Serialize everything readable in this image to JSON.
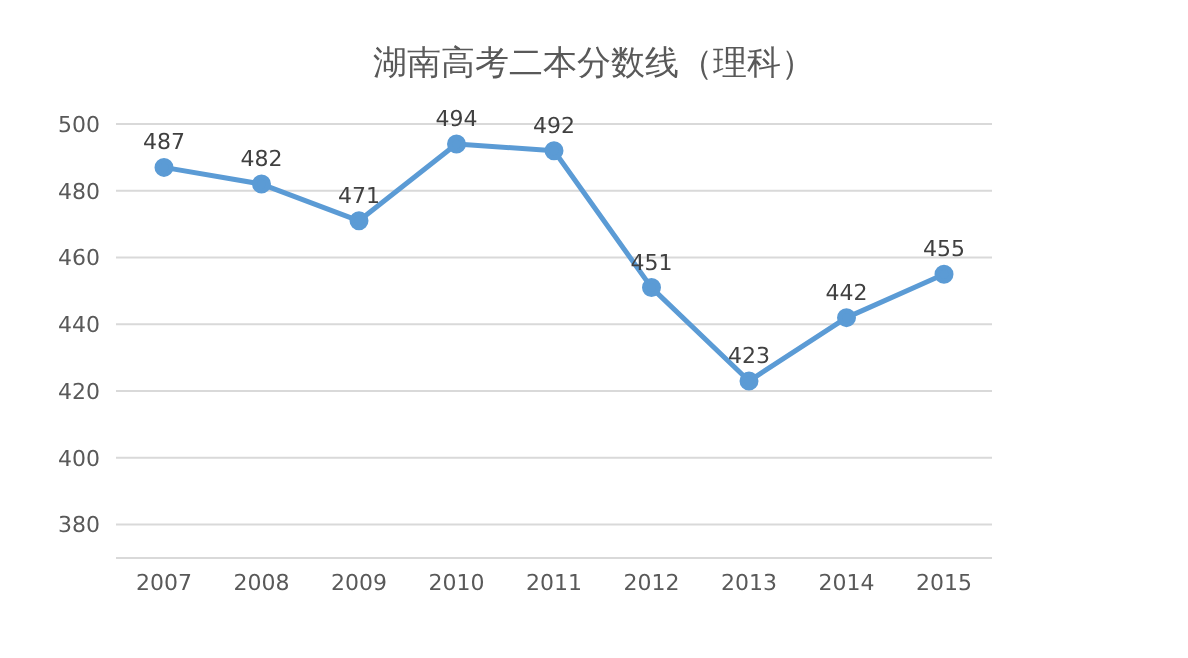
{
  "chart_data": {
    "type": "line",
    "title": "湖南高考二本分数线（理科）",
    "categories": [
      "2007",
      "2008",
      "2009",
      "2010",
      "2011",
      "2012",
      "2013",
      "2014",
      "2015"
    ],
    "series": [
      {
        "color": "#5b9bd5",
        "values": [
          487,
          482,
          471,
          494,
          492,
          451,
          423,
          442,
          455
        ]
      }
    ],
    "ylim": [
      370,
      500
    ],
    "yticks": [
      380,
      400,
      420,
      440,
      460,
      480,
      500
    ],
    "grid": "y",
    "marker": "circle",
    "line_style": "solid",
    "data_labels": true
  }
}
